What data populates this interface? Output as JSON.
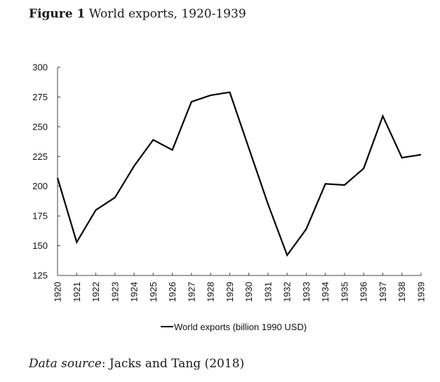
{
  "title": {
    "prefix": "Figure 1",
    "text": "World exports, 1920-1939"
  },
  "source": {
    "label": "Data source",
    "text": ": Jacks and Tang (2018)"
  },
  "chart_data": {
    "type": "line",
    "title": "World exports, 1920-1939",
    "xlabel": "",
    "ylabel": "",
    "x": [
      "1920",
      "1921",
      "1922",
      "1923",
      "1924",
      "1925",
      "1926",
      "1927",
      "1928",
      "1929",
      "1930",
      "1931",
      "1932",
      "1933",
      "1934",
      "1935",
      "1936",
      "1937",
      "1938",
      "1939"
    ],
    "series": [
      {
        "name": "World exports (billion 1990 USD)",
        "color": "#000000",
        "values": [
          207,
          153,
          180,
          190.5,
          217,
          239,
          230.5,
          271,
          276.5,
          279,
          232,
          185,
          142,
          164,
          202,
          201,
          215,
          259,
          224,
          226.5
        ]
      }
    ],
    "ylim": [
      125,
      300
    ],
    "yticks": [
      125,
      150,
      175,
      200,
      225,
      250,
      275,
      300
    ],
    "grid": false,
    "legend": "bottom-center"
  }
}
